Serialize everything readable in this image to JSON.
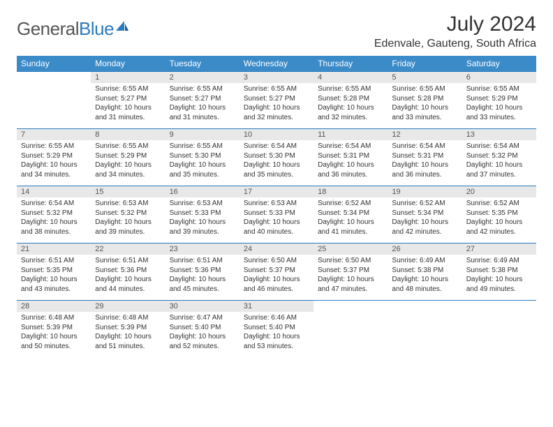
{
  "logo": {
    "general": "General",
    "blue": "Blue"
  },
  "title": "July 2024",
  "location": "Edenvale, Gauteng, South Africa",
  "weekdays": [
    "Sunday",
    "Monday",
    "Tuesday",
    "Wednesday",
    "Thursday",
    "Friday",
    "Saturday"
  ],
  "colors": {
    "header_bg": "#3b8bc9",
    "daynum_bg": "#e8e8e8",
    "rule": "#2b7bbf",
    "text": "#333333",
    "logo_gray": "#555555",
    "logo_blue": "#2b7bbf"
  },
  "weeks": [
    [
      {
        "n": "",
        "l1": "",
        "l2": "",
        "l3": "",
        "l4": ""
      },
      {
        "n": "1",
        "l1": "Sunrise: 6:55 AM",
        "l2": "Sunset: 5:27 PM",
        "l3": "Daylight: 10 hours",
        "l4": "and 31 minutes."
      },
      {
        "n": "2",
        "l1": "Sunrise: 6:55 AM",
        "l2": "Sunset: 5:27 PM",
        "l3": "Daylight: 10 hours",
        "l4": "and 31 minutes."
      },
      {
        "n": "3",
        "l1": "Sunrise: 6:55 AM",
        "l2": "Sunset: 5:27 PM",
        "l3": "Daylight: 10 hours",
        "l4": "and 32 minutes."
      },
      {
        "n": "4",
        "l1": "Sunrise: 6:55 AM",
        "l2": "Sunset: 5:28 PM",
        "l3": "Daylight: 10 hours",
        "l4": "and 32 minutes."
      },
      {
        "n": "5",
        "l1": "Sunrise: 6:55 AM",
        "l2": "Sunset: 5:28 PM",
        "l3": "Daylight: 10 hours",
        "l4": "and 33 minutes."
      },
      {
        "n": "6",
        "l1": "Sunrise: 6:55 AM",
        "l2": "Sunset: 5:29 PM",
        "l3": "Daylight: 10 hours",
        "l4": "and 33 minutes."
      }
    ],
    [
      {
        "n": "7",
        "l1": "Sunrise: 6:55 AM",
        "l2": "Sunset: 5:29 PM",
        "l3": "Daylight: 10 hours",
        "l4": "and 34 minutes."
      },
      {
        "n": "8",
        "l1": "Sunrise: 6:55 AM",
        "l2": "Sunset: 5:29 PM",
        "l3": "Daylight: 10 hours",
        "l4": "and 34 minutes."
      },
      {
        "n": "9",
        "l1": "Sunrise: 6:55 AM",
        "l2": "Sunset: 5:30 PM",
        "l3": "Daylight: 10 hours",
        "l4": "and 35 minutes."
      },
      {
        "n": "10",
        "l1": "Sunrise: 6:54 AM",
        "l2": "Sunset: 5:30 PM",
        "l3": "Daylight: 10 hours",
        "l4": "and 35 minutes."
      },
      {
        "n": "11",
        "l1": "Sunrise: 6:54 AM",
        "l2": "Sunset: 5:31 PM",
        "l3": "Daylight: 10 hours",
        "l4": "and 36 minutes."
      },
      {
        "n": "12",
        "l1": "Sunrise: 6:54 AM",
        "l2": "Sunset: 5:31 PM",
        "l3": "Daylight: 10 hours",
        "l4": "and 36 minutes."
      },
      {
        "n": "13",
        "l1": "Sunrise: 6:54 AM",
        "l2": "Sunset: 5:32 PM",
        "l3": "Daylight: 10 hours",
        "l4": "and 37 minutes."
      }
    ],
    [
      {
        "n": "14",
        "l1": "Sunrise: 6:54 AM",
        "l2": "Sunset: 5:32 PM",
        "l3": "Daylight: 10 hours",
        "l4": "and 38 minutes."
      },
      {
        "n": "15",
        "l1": "Sunrise: 6:53 AM",
        "l2": "Sunset: 5:32 PM",
        "l3": "Daylight: 10 hours",
        "l4": "and 39 minutes."
      },
      {
        "n": "16",
        "l1": "Sunrise: 6:53 AM",
        "l2": "Sunset: 5:33 PM",
        "l3": "Daylight: 10 hours",
        "l4": "and 39 minutes."
      },
      {
        "n": "17",
        "l1": "Sunrise: 6:53 AM",
        "l2": "Sunset: 5:33 PM",
        "l3": "Daylight: 10 hours",
        "l4": "and 40 minutes."
      },
      {
        "n": "18",
        "l1": "Sunrise: 6:52 AM",
        "l2": "Sunset: 5:34 PM",
        "l3": "Daylight: 10 hours",
        "l4": "and 41 minutes."
      },
      {
        "n": "19",
        "l1": "Sunrise: 6:52 AM",
        "l2": "Sunset: 5:34 PM",
        "l3": "Daylight: 10 hours",
        "l4": "and 42 minutes."
      },
      {
        "n": "20",
        "l1": "Sunrise: 6:52 AM",
        "l2": "Sunset: 5:35 PM",
        "l3": "Daylight: 10 hours",
        "l4": "and 42 minutes."
      }
    ],
    [
      {
        "n": "21",
        "l1": "Sunrise: 6:51 AM",
        "l2": "Sunset: 5:35 PM",
        "l3": "Daylight: 10 hours",
        "l4": "and 43 minutes."
      },
      {
        "n": "22",
        "l1": "Sunrise: 6:51 AM",
        "l2": "Sunset: 5:36 PM",
        "l3": "Daylight: 10 hours",
        "l4": "and 44 minutes."
      },
      {
        "n": "23",
        "l1": "Sunrise: 6:51 AM",
        "l2": "Sunset: 5:36 PM",
        "l3": "Daylight: 10 hours",
        "l4": "and 45 minutes."
      },
      {
        "n": "24",
        "l1": "Sunrise: 6:50 AM",
        "l2": "Sunset: 5:37 PM",
        "l3": "Daylight: 10 hours",
        "l4": "and 46 minutes."
      },
      {
        "n": "25",
        "l1": "Sunrise: 6:50 AM",
        "l2": "Sunset: 5:37 PM",
        "l3": "Daylight: 10 hours",
        "l4": "and 47 minutes."
      },
      {
        "n": "26",
        "l1": "Sunrise: 6:49 AM",
        "l2": "Sunset: 5:38 PM",
        "l3": "Daylight: 10 hours",
        "l4": "and 48 minutes."
      },
      {
        "n": "27",
        "l1": "Sunrise: 6:49 AM",
        "l2": "Sunset: 5:38 PM",
        "l3": "Daylight: 10 hours",
        "l4": "and 49 minutes."
      }
    ],
    [
      {
        "n": "28",
        "l1": "Sunrise: 6:48 AM",
        "l2": "Sunset: 5:39 PM",
        "l3": "Daylight: 10 hours",
        "l4": "and 50 minutes."
      },
      {
        "n": "29",
        "l1": "Sunrise: 6:48 AM",
        "l2": "Sunset: 5:39 PM",
        "l3": "Daylight: 10 hours",
        "l4": "and 51 minutes."
      },
      {
        "n": "30",
        "l1": "Sunrise: 6:47 AM",
        "l2": "Sunset: 5:40 PM",
        "l3": "Daylight: 10 hours",
        "l4": "and 52 minutes."
      },
      {
        "n": "31",
        "l1": "Sunrise: 6:46 AM",
        "l2": "Sunset: 5:40 PM",
        "l3": "Daylight: 10 hours",
        "l4": "and 53 minutes."
      },
      {
        "n": "",
        "l1": "",
        "l2": "",
        "l3": "",
        "l4": ""
      },
      {
        "n": "",
        "l1": "",
        "l2": "",
        "l3": "",
        "l4": ""
      },
      {
        "n": "",
        "l1": "",
        "l2": "",
        "l3": "",
        "l4": ""
      }
    ]
  ]
}
